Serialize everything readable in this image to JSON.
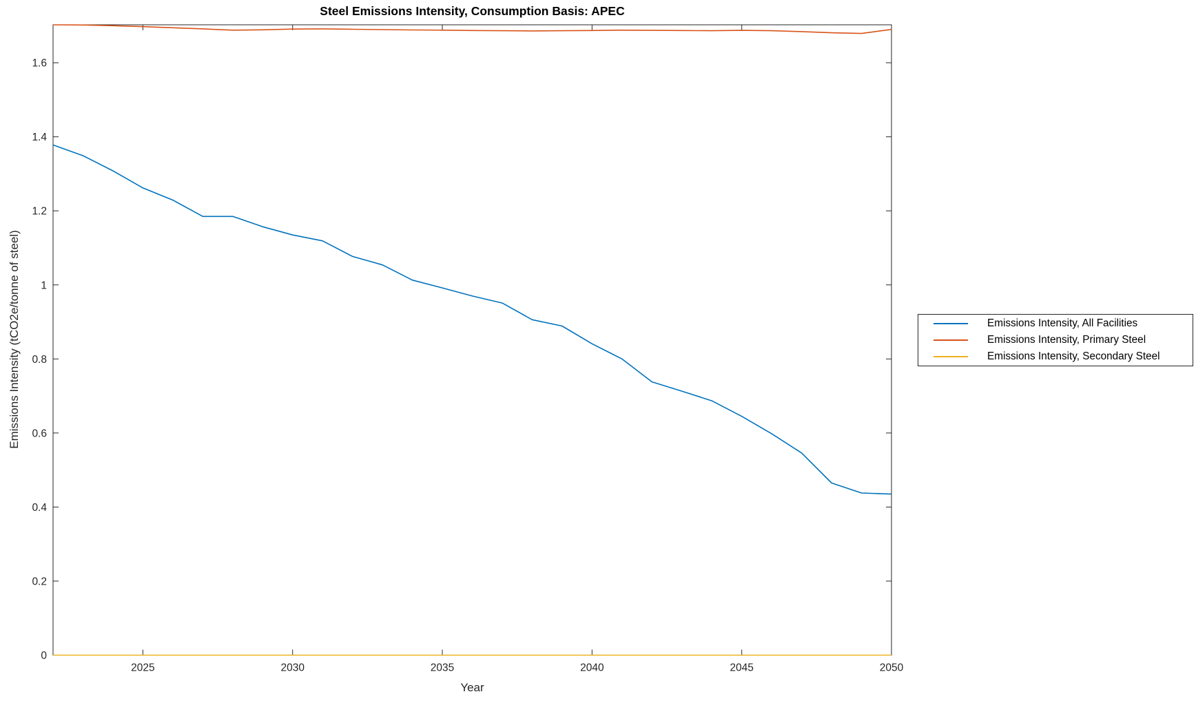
{
  "chart_data": {
    "type": "line",
    "title": "Steel Emissions Intensity, Consumption Basis: APEC",
    "xlabel": "Year",
    "ylabel": "Emissions Intensity (tCO2e/tonne of steel)",
    "x": [
      2022,
      2023,
      2024,
      2025,
      2026,
      2027,
      2028,
      2029,
      2030,
      2031,
      2032,
      2033,
      2034,
      2035,
      2036,
      2037,
      2038,
      2039,
      2040,
      2041,
      2042,
      2043,
      2044,
      2045,
      2046,
      2047,
      2048,
      2049,
      2050
    ],
    "series": [
      {
        "name": "Emissions Intensity, All Facilities",
        "color": "#0072BD",
        "values": [
          1.378,
          1.349,
          1.308,
          1.262,
          1.229,
          1.185,
          1.185,
          1.157,
          1.135,
          1.119,
          1.077,
          1.054,
          1.013,
          0.992,
          0.97,
          0.951,
          0.906,
          0.889,
          0.841,
          0.8,
          0.738,
          0.713,
          0.687,
          0.645,
          0.598,
          0.546,
          0.465,
          0.438,
          0.435
        ]
      },
      {
        "name": "Emissions Intensity, Primary Steel",
        "color": "#D95319",
        "values": [
          1.7025,
          1.702,
          1.7,
          1.6975,
          1.6945,
          1.6915,
          1.688,
          1.689,
          1.691,
          1.6915,
          1.6905,
          1.6895,
          1.6885,
          1.688,
          1.687,
          1.6865,
          1.686,
          1.6865,
          1.687,
          1.688,
          1.6875,
          1.687,
          1.6865,
          1.6875,
          1.6865,
          1.684,
          1.681,
          1.679,
          1.69
        ]
      },
      {
        "name": "Emissions Intensity, Secondary Steel",
        "color": "#EDB120",
        "values": [
          0,
          0,
          0,
          0,
          0,
          0,
          0,
          0,
          0,
          0,
          0,
          0,
          0,
          0,
          0,
          0,
          0,
          0,
          0,
          0,
          0,
          0,
          0,
          0,
          0,
          0,
          0,
          0,
          0
        ]
      }
    ],
    "xlim": [
      2022,
      2050
    ],
    "ylim": [
      0,
      1.7025
    ],
    "xticks": [
      2025,
      2030,
      2035,
      2040,
      2045,
      2050
    ],
    "yticks": [
      0,
      0.2,
      0.4,
      0.6,
      0.8,
      1,
      1.2,
      1.4,
      1.6
    ],
    "grid": false,
    "legend_position": "right-outside",
    "axis_color": "#262626",
    "background": "#FFFFFF"
  }
}
